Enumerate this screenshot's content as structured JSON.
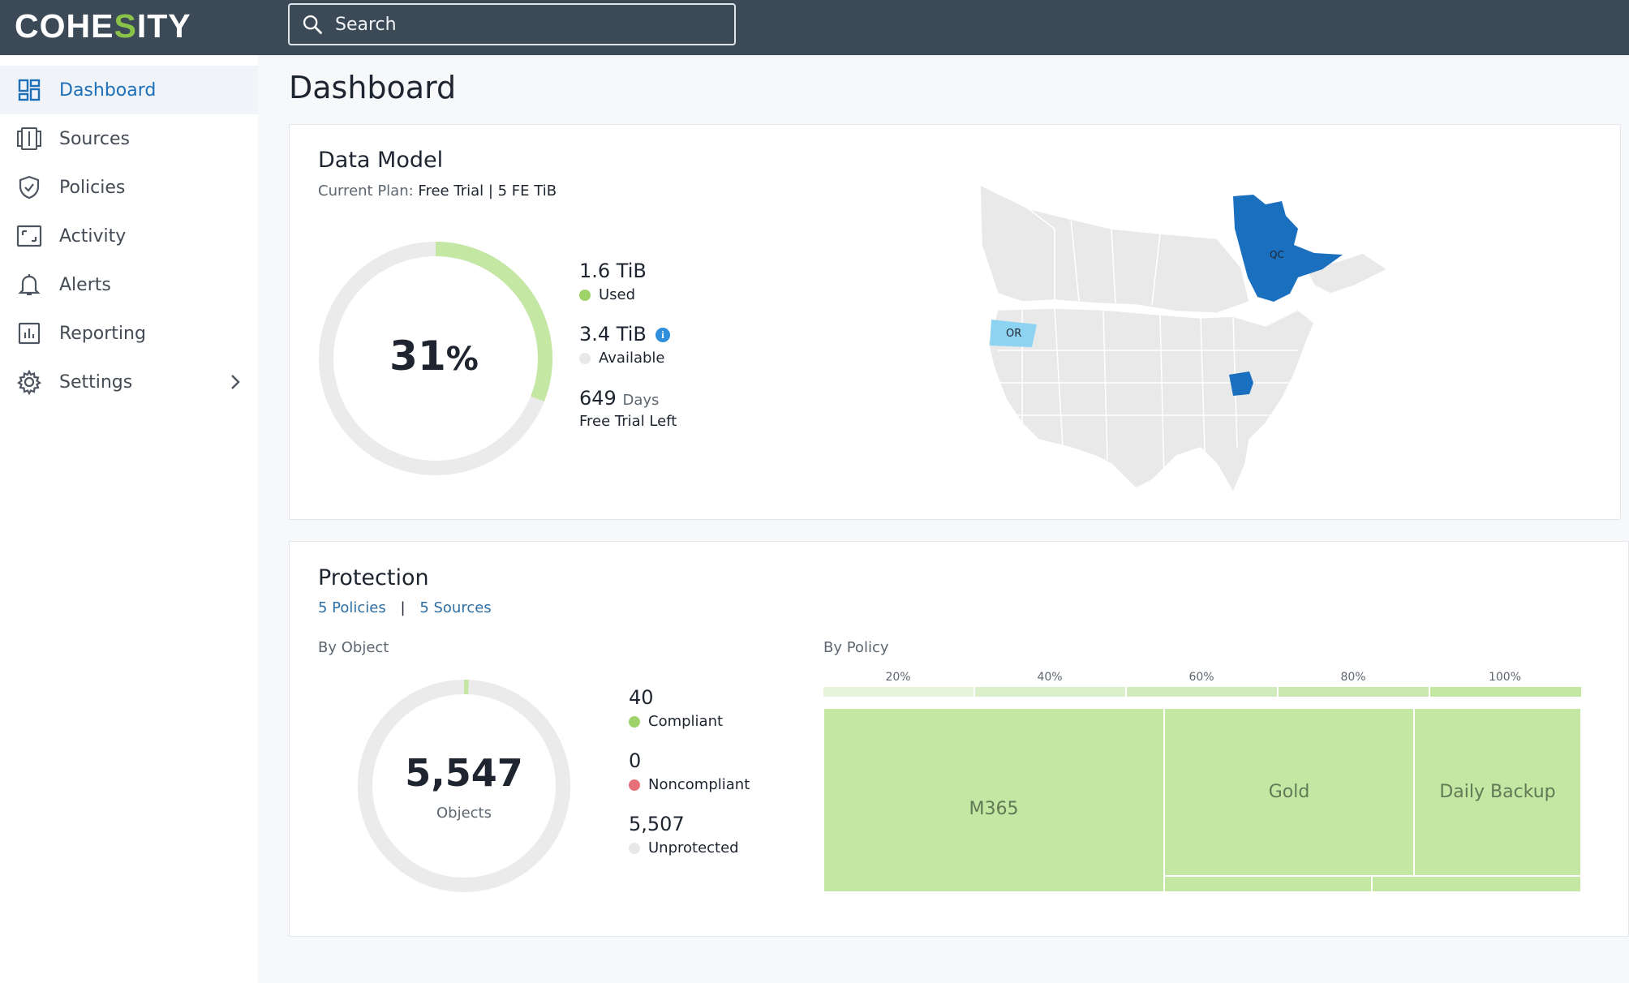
{
  "brand": {
    "logo_pre": "COHE",
    "logo_accent": "S",
    "logo_post": "ITY",
    "accent_color": "#8bc34a"
  },
  "search": {
    "placeholder": "Search"
  },
  "sidebar": {
    "items": [
      {
        "label": "Dashboard",
        "icon": "dashboard-icon",
        "active": true
      },
      {
        "label": "Sources",
        "icon": "sources-icon"
      },
      {
        "label": "Policies",
        "icon": "shield-icon"
      },
      {
        "label": "Activity",
        "icon": "activity-icon"
      },
      {
        "label": "Alerts",
        "icon": "bell-icon"
      },
      {
        "label": "Reporting",
        "icon": "reporting-icon"
      },
      {
        "label": "Settings",
        "icon": "gear-icon",
        "has_submenu": true
      }
    ]
  },
  "page": {
    "title": "Dashboard"
  },
  "data_model": {
    "title": "Data Model",
    "plan_label": "Current Plan:",
    "plan_value": "Free Trial | 5 FE TiB",
    "gauge_value": "31",
    "gauge_unit": "%",
    "gauge_fraction": 0.31,
    "used_value": "1.6 TiB",
    "used_label": "Used",
    "available_value": "3.4 TiB",
    "available_label": "Available",
    "days_value": "649",
    "days_unit": "Days",
    "days_label": "Free Trial Left",
    "map": {
      "regions": [
        {
          "label": "QC",
          "color": "#1a6fbf"
        },
        {
          "label": "OR",
          "color": "#8fd3f3"
        },
        {
          "label": "",
          "name": "Ohio",
          "color": "#1a6fbf"
        }
      ]
    }
  },
  "protection": {
    "title": "Protection",
    "policies_link": "5 Policies",
    "separator": "|",
    "sources_link": "5 Sources",
    "by_object": "By Object",
    "objects_value": "5,547",
    "objects_label": "Objects",
    "compliant_value": "40",
    "compliant_label": "Compliant",
    "noncompliant_value": "0",
    "noncompliant_label": "Noncompliant",
    "unprotected_value": "5,507",
    "unprotected_label": "Unprotected",
    "by_policy": "By Policy",
    "scale_ticks": [
      "20%",
      "40%",
      "60%",
      "80%",
      "100%"
    ],
    "treemap_labels": {
      "m365": "M365",
      "gold": "Gold",
      "daily": "Daily Backup"
    },
    "colors": {
      "compliant": "#9ed36a",
      "noncompliant": "#e8707a",
      "unprotected": "#e8e8e8"
    }
  }
}
